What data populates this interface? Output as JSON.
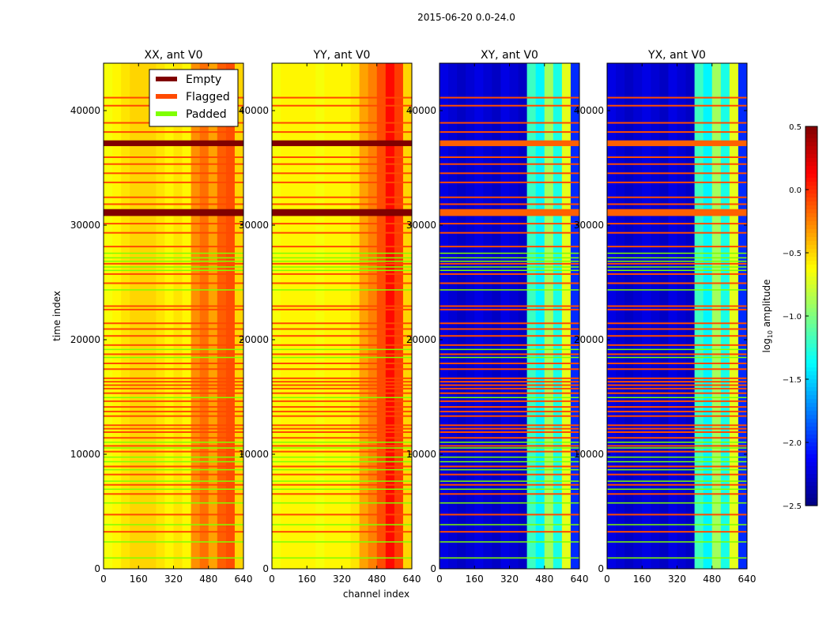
{
  "chart_data": {
    "type": "heatmap",
    "suptitle": "2015-06-20 0.0-24.0",
    "xlabel": "channel index",
    "ylabel": "time index",
    "xlim": [
      0,
      640
    ],
    "ylim": [
      0,
      44138
    ],
    "xticks": [
      "0",
      "160",
      "320",
      "480",
      "640"
    ],
    "yticks": [
      "0",
      "10000",
      "20000",
      "30000",
      "40000"
    ],
    "colorbar": {
      "label": "log10 amplitude",
      "range": [
        -2.5,
        0.5
      ],
      "ticks": [
        "0.5",
        "0.0",
        "−0.5",
        "−1.0",
        "−1.5",
        "−2.0",
        "−2.5"
      ],
      "colormap": "jet"
    },
    "legend": {
      "placement": "upper-right of first panel",
      "entries": [
        {
          "label": "Empty",
          "color": "#800000"
        },
        {
          "label": "Flagged",
          "color": "#ff4a00"
        },
        {
          "label": "Padded",
          "color": "#7fff00"
        }
      ]
    },
    "panels": [
      {
        "title": "XX, ant V0",
        "channel_profile": [
          -0.65,
          -0.6,
          -0.55,
          -0.5,
          -0.5,
          -0.5,
          -0.55,
          -0.6,
          -0.55,
          -0.6,
          -0.3,
          -0.2,
          -0.35,
          -0.15,
          -0.1,
          -0.5
        ]
      },
      {
        "title": "YY, ant V0",
        "channel_profile": [
          -0.65,
          -0.6,
          -0.6,
          -0.6,
          -0.6,
          -0.65,
          -0.6,
          -0.6,
          -0.6,
          -0.55,
          -0.35,
          -0.25,
          -0.1,
          0.1,
          -0.05,
          -0.5
        ]
      },
      {
        "title": "XY, ant V0",
        "channel_profile": [
          -2.2,
          -2.25,
          -2.3,
          -2.25,
          -2.2,
          -2.25,
          -2.3,
          -2.2,
          -2.25,
          -2.3,
          -1.2,
          -1.4,
          -0.9,
          -1.3,
          -0.7,
          -2.0
        ]
      },
      {
        "title": "YX, ant V0",
        "channel_profile": [
          -2.2,
          -2.25,
          -2.3,
          -2.25,
          -2.2,
          -2.25,
          -2.3,
          -2.2,
          -2.25,
          -2.3,
          -1.2,
          -1.4,
          -0.9,
          -1.3,
          -0.7,
          -2.0
        ]
      }
    ],
    "empty_rows": [
      [
        36900,
        37400
      ],
      [
        30800,
        31400
      ]
    ],
    "flagged_rows": [
      41200,
      40500,
      39000,
      38200,
      36000,
      35400,
      34600,
      33800,
      32500,
      31900,
      30200,
      29400,
      28200,
      26700,
      25800,
      25000,
      23000,
      22700,
      21500,
      21000,
      20400,
      19600,
      18800,
      18000,
      17500,
      16700,
      16400,
      16100,
      15800,
      15400,
      14700,
      14200,
      13800,
      13400,
      12600,
      12300,
      12000,
      11500,
      10800,
      10300,
      9000,
      8300,
      7400,
      6600,
      4800,
      3300
    ],
    "padded_rows": [
      27600,
      27200,
      26900,
      26400,
      26100,
      24400,
      19200,
      18500,
      15000,
      11100,
      10600,
      9800,
      9400,
      8700,
      7700,
      7000,
      5800,
      3900,
      2400,
      1000
    ]
  }
}
